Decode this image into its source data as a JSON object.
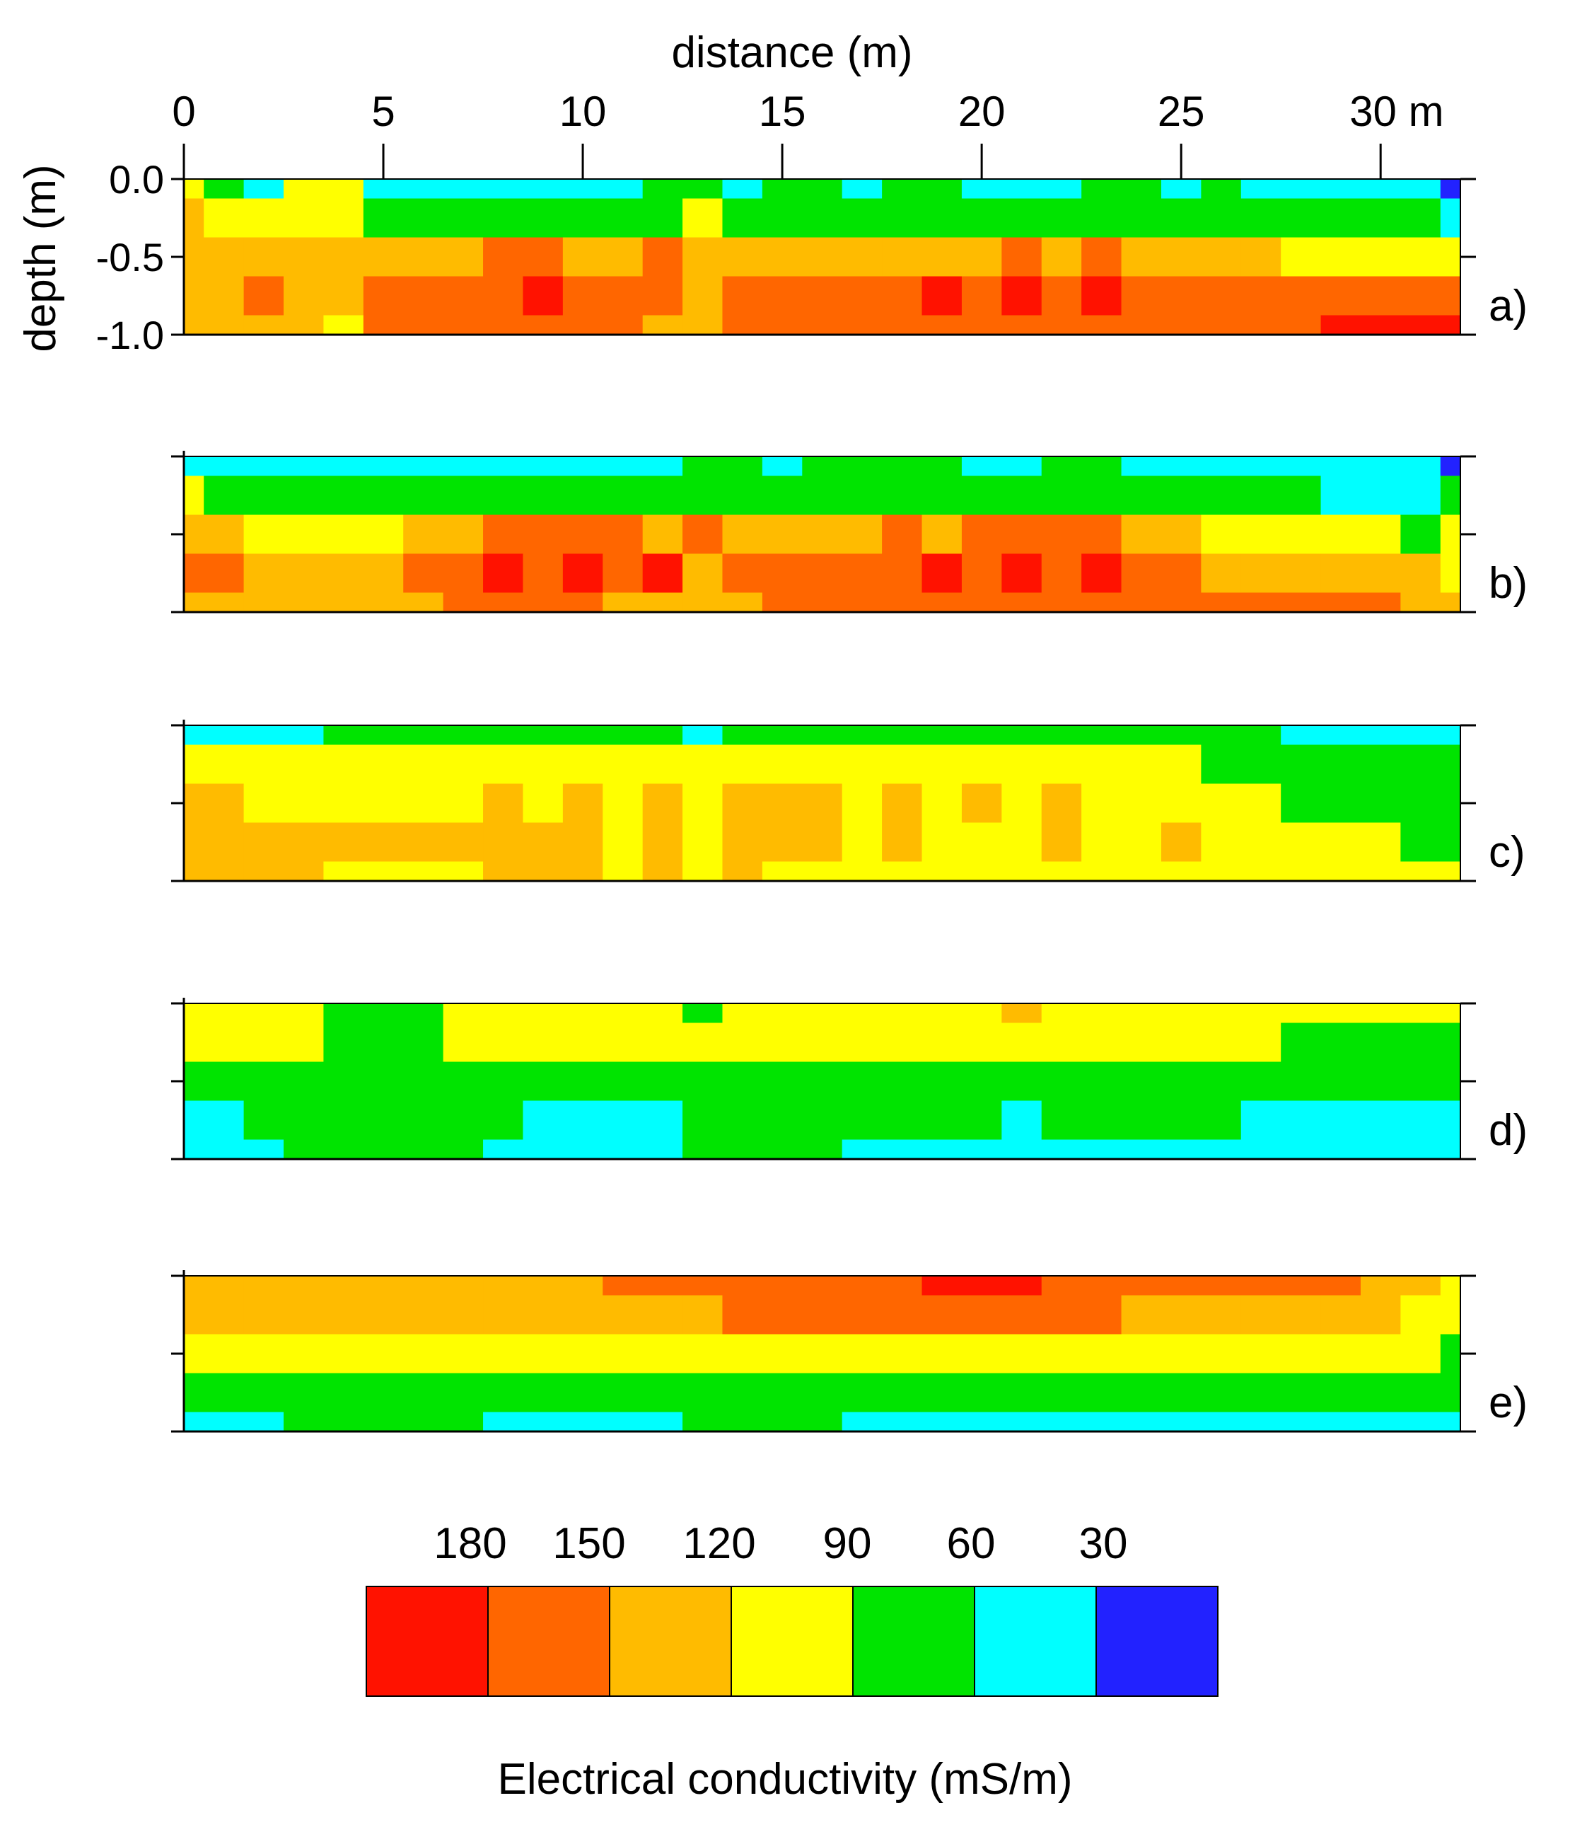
{
  "chart_data": {
    "type": "heatmap",
    "xlabel": "distance (m)",
    "ylabel": "depth (m)",
    "x_ticks": [
      0,
      5,
      10,
      15,
      20,
      25,
      30
    ],
    "x_tick_labels": [
      "0",
      "5",
      "10",
      "15",
      "20",
      "25",
      "30 m"
    ],
    "xlim": [
      0,
      32
    ],
    "y_ticks": [
      0.0,
      -0.5,
      -1.0
    ],
    "y_tick_labels": [
      "0.0",
      "-0.5",
      "-1.0"
    ],
    "ylim": [
      -1.0,
      0.0
    ],
    "x": [
      0,
      1,
      2,
      3,
      4,
      5,
      6,
      7,
      8,
      9,
      10,
      11,
      12,
      13,
      14,
      15,
      16,
      17,
      18,
      19,
      20,
      21,
      22,
      23,
      24,
      25,
      26,
      27,
      28,
      29,
      30,
      31,
      32
    ],
    "depths": [
      0.0,
      -0.25,
      -0.5,
      -0.75,
      -1.0
    ],
    "levels": [
      30,
      60,
      90,
      120,
      150,
      180
    ],
    "colorbar": {
      "title": "Electrical conductivity (mS/m)",
      "labels": [
        "180",
        "150",
        "120",
        "90",
        "60",
        "30"
      ],
      "colors": [
        "#ff1200",
        "#ff6600",
        "#ffbb00",
        "#ffff00",
        "#00e400",
        "#00ffff",
        "#2222ff"
      ]
    },
    "panels": [
      {
        "label": "a)",
        "grid": [
          [
            95,
            85,
            50,
            90,
            95,
            55,
            40,
            45,
            55,
            50,
            45,
            40,
            60,
            65,
            55,
            62,
            65,
            55,
            60,
            60,
            55,
            45,
            52,
            60,
            60,
            50,
            60,
            55,
            52,
            50,
            35,
            30,
            20
          ],
          [
            120,
            115,
            105,
            95,
            110,
            80,
            70,
            75,
            80,
            75,
            85,
            75,
            85,
            95,
            85,
            80,
            85,
            80,
            80,
            85,
            80,
            80,
            80,
            80,
            80,
            75,
            75,
            70,
            70,
            65,
            65,
            62,
            55
          ],
          [
            135,
            130,
            145,
            130,
            125,
            120,
            130,
            140,
            150,
            150,
            140,
            140,
            150,
            130,
            140,
            145,
            145,
            145,
            140,
            145,
            145,
            150,
            145,
            150,
            140,
            130,
            120,
            120,
            115,
            110,
            105,
            100,
            90
          ],
          [
            140,
            140,
            170,
            140,
            125,
            150,
            155,
            175,
            160,
            180,
            160,
            175,
            155,
            135,
            150,
            160,
            160,
            160,
            160,
            180,
            165,
            185,
            160,
            185,
            160,
            170,
            155,
            155,
            155,
            155,
            160,
            160,
            150
          ],
          [
            130,
            130,
            130,
            130,
            110,
            150,
            150,
            155,
            155,
            160,
            155,
            160,
            145,
            125,
            150,
            155,
            155,
            155,
            160,
            160,
            160,
            165,
            160,
            165,
            160,
            160,
            160,
            160,
            170,
            190,
            195,
            190,
            185
          ]
        ]
      },
      {
        "label": "b)",
        "grid": [
          [
            40,
            38,
            30,
            45,
            55,
            55,
            58,
            58,
            55,
            58,
            55,
            55,
            58,
            60,
            60,
            58,
            60,
            60,
            60,
            60,
            58,
            58,
            60,
            60,
            58,
            55,
            52,
            50,
            45,
            40,
            30,
            35,
            20
          ],
          [
            90,
            85,
            75,
            80,
            80,
            85,
            80,
            80,
            85,
            85,
            80,
            85,
            85,
            85,
            85,
            85,
            85,
            85,
            85,
            85,
            85,
            85,
            85,
            85,
            80,
            80,
            75,
            70,
            65,
            55,
            50,
            55,
            60
          ],
          [
            125,
            120,
            100,
            115,
            110,
            115,
            120,
            140,
            150,
            160,
            150,
            160,
            140,
            150,
            145,
            140,
            135,
            140,
            150,
            145,
            155,
            160,
            150,
            155,
            135,
            120,
            115,
            105,
            100,
            95,
            90,
            85,
            90
          ],
          [
            150,
            155,
            130,
            145,
            125,
            125,
            150,
            160,
            185,
            160,
            185,
            160,
            185,
            140,
            160,
            150,
            150,
            150,
            155,
            185,
            155,
            185,
            155,
            185,
            150,
            170,
            145,
            135,
            135,
            130,
            120,
            130,
            110
          ],
          [
            140,
            140,
            140,
            135,
            125,
            125,
            145,
            150,
            150,
            150,
            150,
            145,
            145,
            140,
            145,
            150,
            150,
            150,
            155,
            155,
            150,
            150,
            150,
            150,
            150,
            150,
            150,
            150,
            150,
            150,
            150,
            140,
            130
          ]
        ]
      },
      {
        "label": "c)",
        "grid": [
          [
            40,
            45,
            55,
            55,
            65,
            70,
            75,
            80,
            70,
            60,
            60,
            65,
            70,
            55,
            60,
            75,
            80,
            75,
            80,
            85,
            85,
            75,
            70,
            75,
            65,
            60,
            62,
            60,
            58,
            55,
            30,
            40,
            55
          ],
          [
            100,
            95,
            95,
            95,
            95,
            100,
            95,
            95,
            100,
            95,
            95,
            100,
            100,
            95,
            95,
            95,
            95,
            95,
            95,
            95,
            95,
            95,
            95,
            95,
            95,
            90,
            85,
            75,
            70,
            70,
            70,
            65,
            62
          ],
          [
            125,
            120,
            110,
            110,
            110,
            115,
            110,
            115,
            130,
            110,
            130,
            110,
            130,
            110,
            125,
            130,
            125,
            115,
            125,
            110,
            120,
            110,
            125,
            115,
            105,
            100,
            95,
            90,
            85,
            80,
            75,
            65,
            60
          ],
          [
            140,
            140,
            145,
            135,
            125,
            125,
            125,
            125,
            135,
            130,
            135,
            115,
            130,
            115,
            135,
            125,
            125,
            115,
            120,
            110,
            115,
            110,
            120,
            110,
            115,
            125,
            95,
            95,
            95,
            95,
            95,
            85,
            85
          ],
          [
            135,
            140,
            140,
            130,
            110,
            105,
            110,
            115,
            125,
            120,
            125,
            115,
            125,
            115,
            130,
            115,
            115,
            110,
            115,
            115,
            110,
            110,
            110,
            110,
            115,
            105,
            100,
            95,
            95,
            95,
            110,
            95,
            95
          ]
        ]
      },
      {
        "label": "d)",
        "grid": [
          [
            95,
            95,
            95,
            95,
            62,
            62,
            75,
            95,
            95,
            95,
            95,
            98,
            92,
            62,
            92,
            95,
            100,
            100,
            110,
            110,
            115,
            125,
            110,
            100,
            95,
            95,
            95,
            95,
            95,
            110,
            95,
            95,
            95
          ],
          [
            90,
            90,
            90,
            90,
            85,
            80,
            85,
            90,
            90,
            90,
            90,
            90,
            90,
            90,
            90,
            90,
            90,
            90,
            95,
            100,
            100,
            105,
            95,
            90,
            90,
            90,
            90,
            90,
            85,
            80,
            85,
            85,
            80
          ],
          [
            80,
            78,
            78,
            80,
            80,
            80,
            80,
            78,
            70,
            65,
            62,
            62,
            68,
            85,
            85,
            85,
            80,
            80,
            80,
            78,
            78,
            75,
            80,
            80,
            80,
            78,
            75,
            70,
            65,
            60,
            68,
            75,
            60
          ],
          [
            58,
            55,
            62,
            75,
            80,
            80,
            80,
            68,
            60,
            58,
            58,
            58,
            55,
            85,
            85,
            80,
            75,
            65,
            65,
            62,
            60,
            58,
            68,
            68,
            68,
            68,
            62,
            58,
            55,
            55,
            58,
            55,
            50
          ],
          [
            55,
            55,
            55,
            75,
            80,
            80,
            80,
            60,
            55,
            55,
            55,
            55,
            55,
            85,
            85,
            80,
            70,
            55,
            55,
            55,
            55,
            55,
            55,
            55,
            55,
            55,
            55,
            55,
            55,
            55,
            45,
            55,
            30
          ]
        ]
      },
      {
        "label": "e)",
        "grid": [
          [
            145,
            145,
            145,
            140,
            130,
            130,
            140,
            140,
            145,
            145,
            145,
            150,
            155,
            160,
            160,
            165,
            165,
            170,
            175,
            180,
            185,
            180,
            175,
            170,
            165,
            160,
            160,
            155,
            155,
            150,
            135,
            120,
            110
          ],
          [
            125,
            120,
            125,
            125,
            120,
            120,
            125,
            125,
            125,
            125,
            130,
            135,
            140,
            145,
            150,
            150,
            150,
            150,
            150,
            150,
            150,
            150,
            150,
            150,
            145,
            145,
            145,
            145,
            140,
            135,
            125,
            115,
            105
          ],
          [
            95,
            95,
            100,
            100,
            100,
            100,
            100,
            100,
            100,
            105,
            110,
            110,
            110,
            115,
            115,
            115,
            115,
            115,
            115,
            115,
            115,
            115,
            115,
            110,
            110,
            105,
            105,
            105,
            105,
            100,
            100,
            95,
            85
          ],
          [
            62,
            62,
            62,
            75,
            82,
            85,
            85,
            72,
            68,
            65,
            62,
            65,
            62,
            80,
            82,
            80,
            80,
            75,
            70,
            65,
            70,
            62,
            70,
            65,
            72,
            70,
            70,
            70,
            70,
            68,
            68,
            70,
            60
          ],
          [
            55,
            55,
            55,
            65,
            80,
            80,
            80,
            60,
            55,
            55,
            55,
            55,
            55,
            75,
            75,
            70,
            65,
            55,
            55,
            55,
            55,
            55,
            55,
            55,
            55,
            55,
            55,
            55,
            55,
            55,
            55,
            55,
            40
          ]
        ]
      }
    ]
  }
}
